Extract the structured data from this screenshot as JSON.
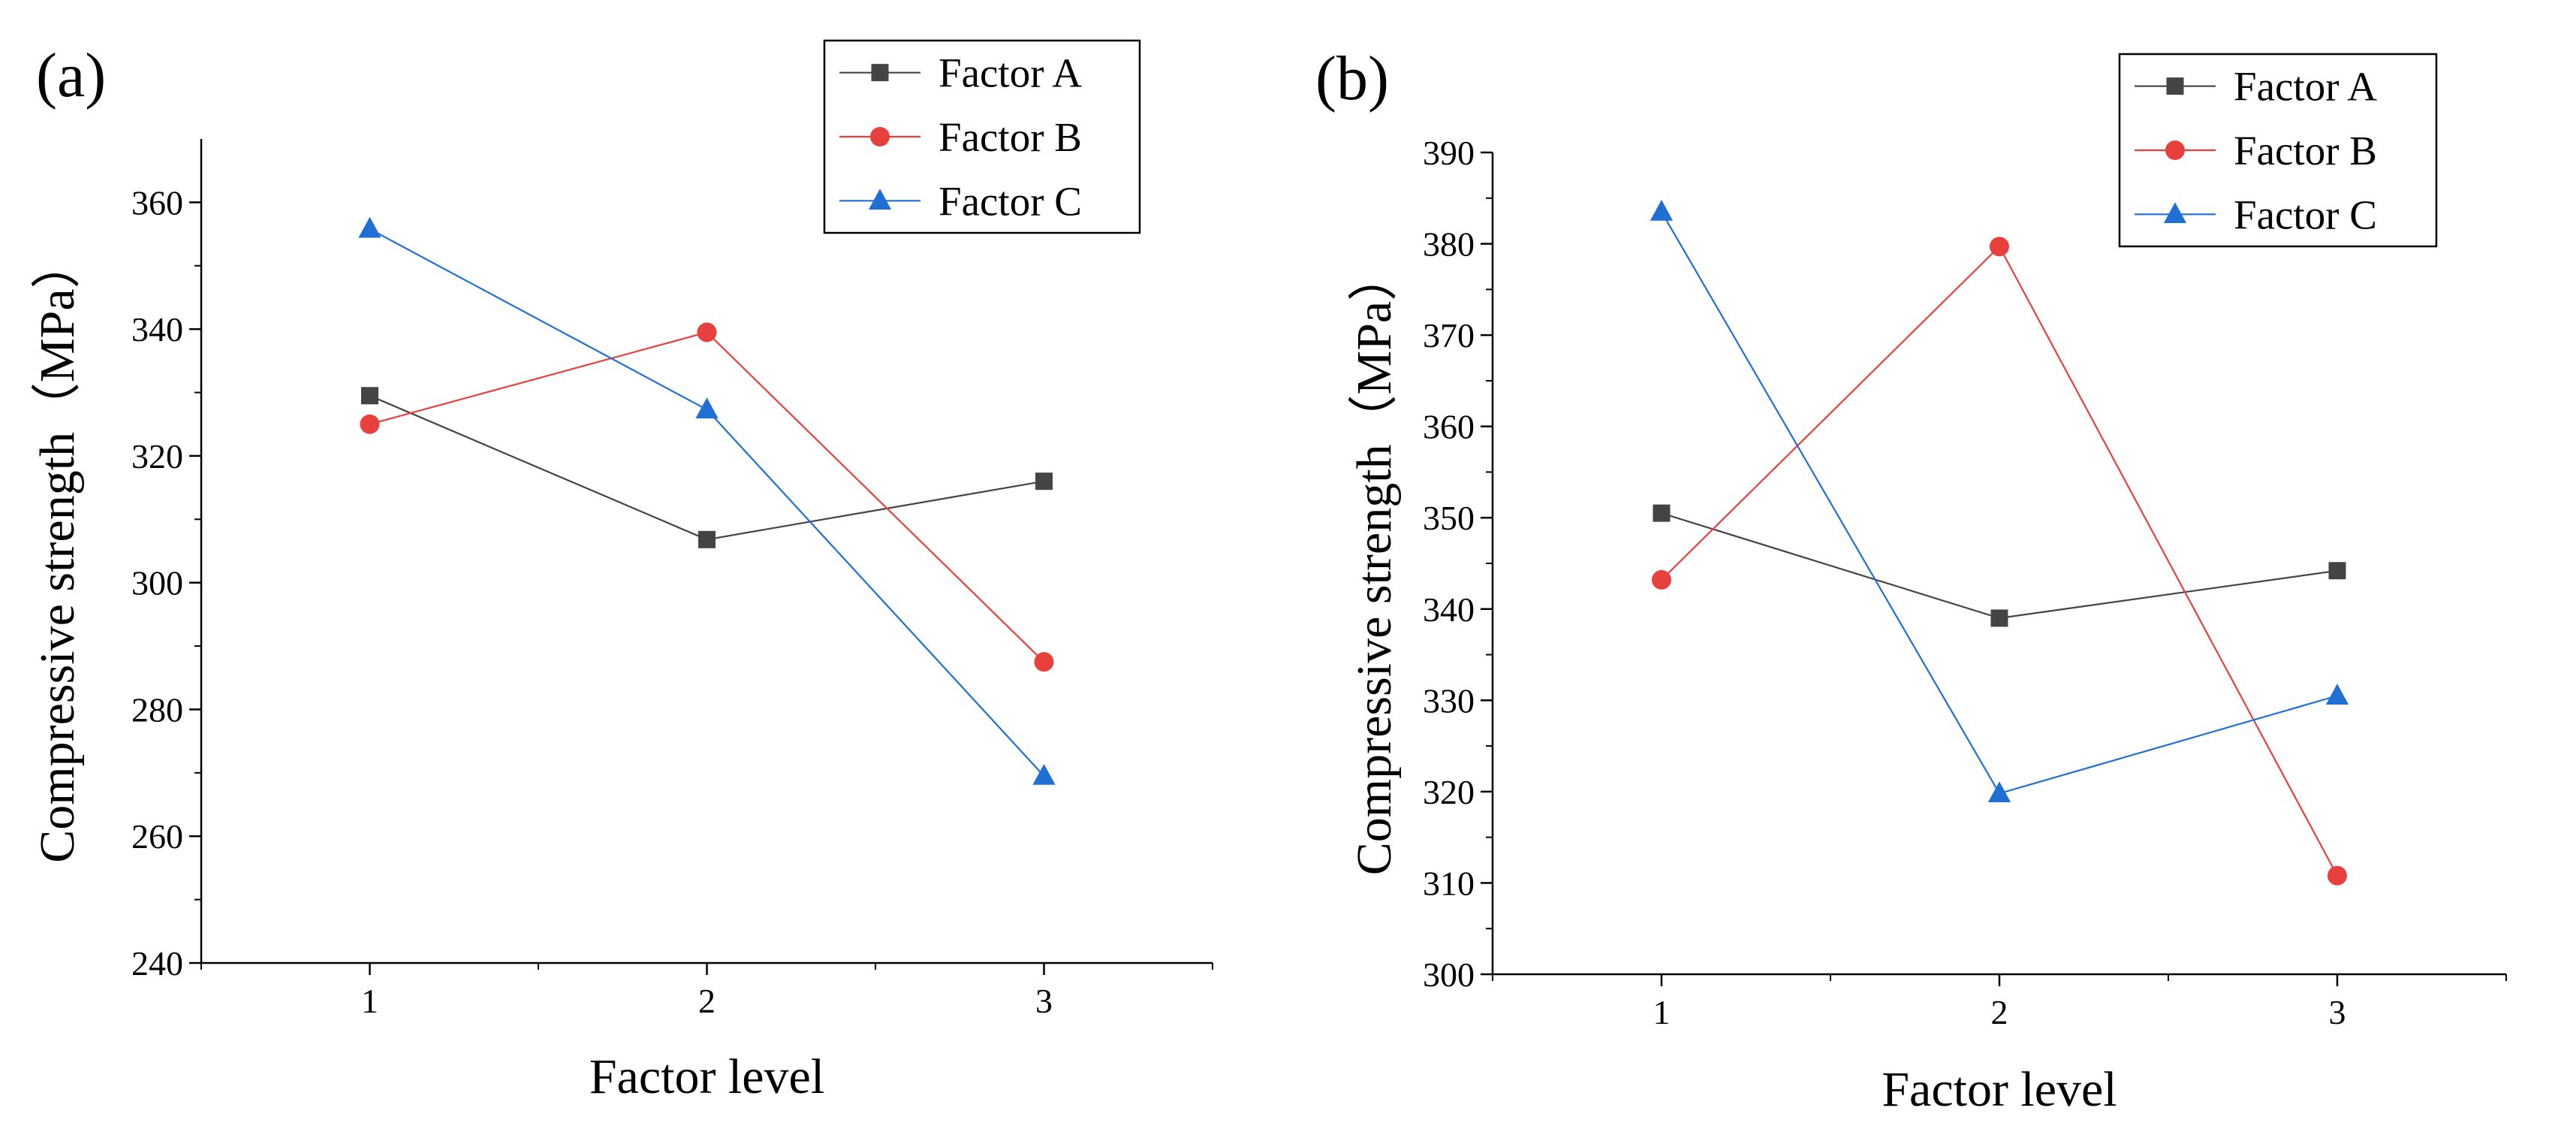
{
  "chart_data": [
    {
      "type": "line",
      "panel_label": "(a)",
      "xlabel": "Factor level",
      "ylabel": "Compressive strength（MPa）",
      "x": [
        1,
        2,
        3
      ],
      "xlim": [
        0.5,
        3.5
      ],
      "ylim": [
        240,
        370
      ],
      "yticks": [
        240,
        260,
        280,
        300,
        320,
        340,
        360
      ],
      "yticks_minor": [
        250,
        270,
        290,
        310,
        330,
        350
      ],
      "legend_position": "top-right",
      "series": [
        {
          "name": "Factor A",
          "marker": "square",
          "color": "#444444",
          "values": [
            329.5,
            306.8,
            316.0
          ]
        },
        {
          "name": "Factor B",
          "marker": "circle",
          "color": "#e8403c",
          "values": [
            325.0,
            339.5,
            287.5
          ]
        },
        {
          "name": "Factor C",
          "marker": "triangle",
          "color": "#1f6fd4",
          "values": [
            355.8,
            327.3,
            269.5
          ]
        }
      ]
    },
    {
      "type": "line",
      "panel_label": "(b)",
      "xlabel": "Factor level",
      "ylabel": "Compressive strength（MPa）",
      "x": [
        1,
        2,
        3
      ],
      "xlim": [
        0.5,
        3.5
      ],
      "ylim": [
        300,
        390
      ],
      "yticks": [
        300,
        310,
        320,
        330,
        340,
        350,
        360,
        370,
        380,
        390
      ],
      "yticks_minor": [
        305,
        315,
        325,
        335,
        345,
        355,
        365,
        375,
        385
      ],
      "legend_position": "top-right",
      "series": [
        {
          "name": "Factor A",
          "marker": "square",
          "color": "#444444",
          "values": [
            350.5,
            339.0,
            344.2
          ]
        },
        {
          "name": "Factor B",
          "marker": "circle",
          "color": "#e8403c",
          "values": [
            343.2,
            379.7,
            310.8
          ]
        },
        {
          "name": "Factor C",
          "marker": "triangle",
          "color": "#1f6fd4",
          "values": [
            383.5,
            319.8,
            330.5
          ]
        }
      ]
    }
  ]
}
